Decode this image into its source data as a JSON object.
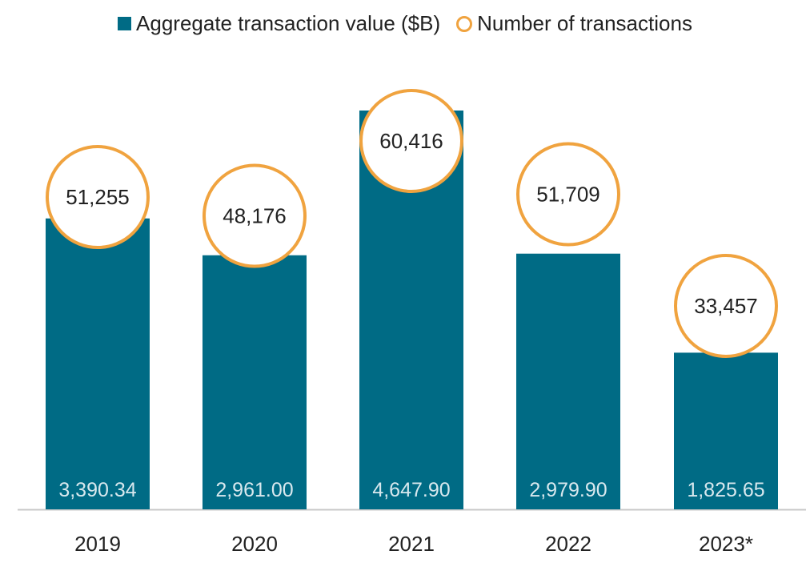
{
  "chart_data": {
    "type": "bar",
    "categories": [
      "2019",
      "2020",
      "2021",
      "2022",
      "2023*"
    ],
    "series": [
      {
        "name": "Aggregate transaction value ($B)",
        "values": [
          3390.34,
          2961.0,
          4647.9,
          2979.9,
          1825.65
        ],
        "value_labels": [
          "3,390.34",
          "2,961.00",
          "4,647.90",
          "2,979.90",
          "1,825.65"
        ]
      },
      {
        "name": "Number of transactions",
        "values": [
          51255,
          48176,
          60416,
          51709,
          33457
        ],
        "value_labels": [
          "51,255",
          "48,176",
          "60,416",
          "51,709",
          "33,457"
        ]
      }
    ],
    "legend": "top-center",
    "grid": false,
    "colors": {
      "bar": "#006b85",
      "circle": "#f0a33f",
      "bar_label": "#d8e8ee",
      "text": "#222222"
    }
  }
}
